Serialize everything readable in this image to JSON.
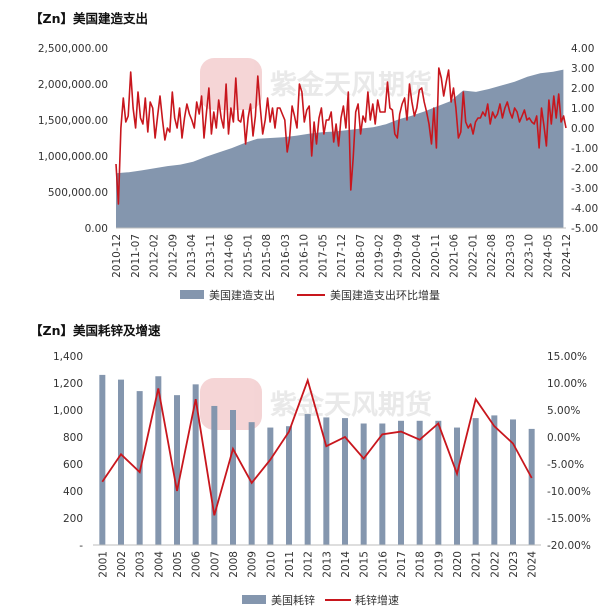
{
  "chart_data": [
    {
      "type": "area",
      "title": "【Zn】美国建造支出",
      "x_labels": [
        "2010-12",
        "2011-07",
        "2012-02",
        "2012-09",
        "2013-04",
        "2013-11",
        "2014-06",
        "2015-01",
        "2015-08",
        "2016-03",
        "2016-10",
        "2017-05",
        "2017-12",
        "2018-07",
        "2019-02",
        "2019-09",
        "2020-04",
        "2020-11",
        "2021-06",
        "2022-01",
        "2022-08",
        "2023-03",
        "2023-10",
        "2024-05",
        "2024-12"
      ],
      "left_axis": {
        "min": 0,
        "max": 2500000,
        "ticks": [
          "0.00",
          "500,000.00",
          "1,000,000.00",
          "1,500,000.00",
          "2,000,000.00",
          "2,500,000.00"
        ]
      },
      "right_axis": {
        "min": -5,
        "max": 4,
        "ticks": [
          "-5.00",
          "-4.00",
          "-3.00",
          "-2.00",
          "-1.00",
          "0.00",
          "1.00",
          "2.00",
          "3.00",
          "4.00"
        ]
      },
      "series": [
        {
          "name": "美国建造支出",
          "axis": "left",
          "color": "#8496ae",
          "values": [
            760000,
            775000,
            800000,
            830000,
            860000,
            880000,
            920000,
            990000,
            1050000,
            1110000,
            1180000,
            1240000,
            1250000,
            1260000,
            1280000,
            1310000,
            1330000,
            1340000,
            1360000,
            1380000,
            1400000,
            1440000,
            1510000,
            1560000,
            1620000,
            1690000,
            1760000,
            1910000,
            1890000,
            1930000,
            1980000,
            2030000,
            2100000,
            2150000,
            2170000,
            2200000
          ],
          "x_pos": [
            0,
            2,
            4,
            6,
            8,
            10,
            12,
            14,
            16,
            18,
            20,
            22,
            24,
            26,
            28,
            30,
            32,
            34,
            36,
            38,
            40,
            42,
            44,
            46,
            48,
            50,
            52,
            54,
            56,
            58,
            60,
            62,
            64,
            66,
            68,
            69.6
          ]
        },
        {
          "name": "美国建造支出环比增量",
          "axis": "right",
          "color": "#c8161d",
          "values": [
            -1.8,
            -3.8,
            0.0,
            1.5,
            0.3,
            0.6,
            2.8,
            1.0,
            0.0,
            1.8,
            0.5,
            0.2,
            1.5,
            -0.2,
            1.3,
            1.0,
            -0.5,
            0.6,
            1.6,
            0.4,
            -0.6,
            0.0,
            -0.2,
            1.8,
            0.5,
            0.0,
            1.0,
            -0.5,
            0.5,
            1.2,
            0.7,
            0.4,
            0.0,
            1.3,
            0.7,
            1.6,
            -0.5,
            0.8,
            2.0,
            -0.3,
            0.8,
            0.0,
            1.4,
            0.5,
            0.0,
            2.2,
            -0.3,
            1.0,
            0.3,
            2.5,
            0.4,
            0.3,
            0.9,
            -0.8,
            0.5,
            1.2,
            -0.4,
            0.6,
            2.6,
            1.0,
            -0.3,
            0.4,
            1.5,
            0.3,
            1.0,
            0.0,
            1.0,
            1.0,
            0.7,
            0.4,
            -1.2,
            -0.5,
            1.1,
            0.6,
            0.0,
            2.2,
            1.8,
            0.3,
            0.9,
            1.1,
            -1.4,
            0.3,
            -0.8,
            0.5,
            1.0,
            -0.3,
            0.4,
            0.4,
            0.8,
            -0.7,
            0.2,
            -0.9,
            0.5,
            1.1,
            0.0,
            1.8,
            -3.1,
            -1.5,
            0.8,
            1.2,
            -0.3,
            0.6,
            0.3,
            1.8,
            0.4,
            1.2,
            0.2,
            1.4,
            0.8,
            0.8,
            0.8,
            2.3,
            1.0,
            0.9,
            -0.3,
            -0.5,
            0.7,
            1.2,
            1.5,
            0.4,
            2.2,
            1.3,
            0.6,
            1.0,
            1.9,
            2.0,
            1.3,
            0.8,
            0.2,
            -0.8,
            1.0,
            -1.0,
            3.0,
            2.5,
            1.6,
            2.3,
            2.9,
            1.3,
            2.0,
            1.0,
            -0.5,
            -0.2,
            1.8,
            0.3,
            0.0,
            0.2,
            -0.3,
            0.3,
            0.5,
            0.5,
            0.8,
            0.6,
            1.2,
            0.2,
            0.8,
            0.5,
            0.7,
            1.2,
            0.5,
            1.0,
            1.3,
            0.8,
            0.5,
            1.0,
            0.8,
            0.3,
            0.6,
            0.9,
            0.4,
            0.5,
            0.3,
            0.2,
            0.6,
            -1.0,
            1.0,
            0.1,
            -0.9,
            1.4,
            0.2,
            1.6,
            0.5,
            1.7,
            0.3,
            0.6,
            0.0
          ]
        }
      ]
    },
    {
      "type": "bar",
      "title": "【Zn】美国耗锌及增速",
      "categories": [
        "2001",
        "2002",
        "2003",
        "2004",
        "2005",
        "2006",
        "2007",
        "2008",
        "2009",
        "2010",
        "2011",
        "2012",
        "2013",
        "2014",
        "2015",
        "2016",
        "2017",
        "2018",
        "2019",
        "2020",
        "2021",
        "2022",
        "2023",
        "2024"
      ],
      "left_axis": {
        "min": 0,
        "max": 1400,
        "ticks": [
          "-",
          "200",
          "400",
          "600",
          "800",
          "1,000",
          "1,200",
          "1,400"
        ]
      },
      "right_axis": {
        "min": -20,
        "max": 15,
        "ticks": [
          "-20.00%",
          "-15.00%",
          "-10.00%",
          "-5.00%",
          "0.00%",
          "5.00%",
          "10.00%",
          "15.00%"
        ]
      },
      "series": [
        {
          "name": "美国耗锌",
          "axis": "left",
          "color": "#8496ae",
          "values": [
            1260,
            1225,
            1140,
            1250,
            1110,
            1190,
            1030,
            1000,
            910,
            870,
            880,
            970,
            945,
            940,
            900,
            900,
            920,
            920,
            920,
            870,
            940,
            960,
            930,
            860
          ]
        },
        {
          "name": "耗锌增速",
          "axis": "right",
          "color": "#c8161d",
          "values": [
            -8.3,
            -3.2,
            -6.5,
            9.0,
            -10.0,
            7.0,
            -14.5,
            -2.2,
            -8.5,
            -4.2,
            1.0,
            10.5,
            -1.7,
            0.0,
            -4.0,
            0.5,
            1.0,
            -0.5,
            2.5,
            -6.8,
            7.0,
            2.0,
            -1.2,
            -7.6
          ]
        }
      ]
    }
  ],
  "watermark": {
    "brand": "紫金天风期货"
  }
}
